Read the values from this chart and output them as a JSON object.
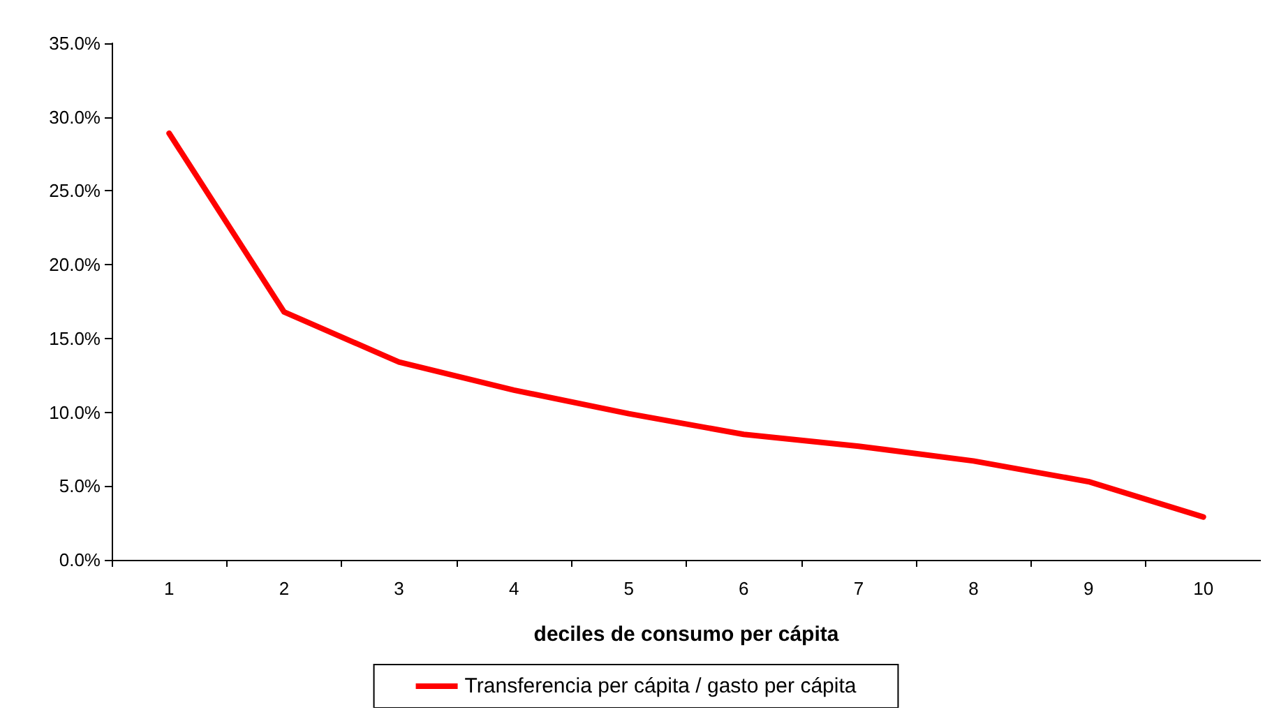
{
  "chart_data": {
    "type": "line",
    "xlabel": "deciles de consumo per cápita",
    "categories": [
      "1",
      "2",
      "3",
      "4",
      "5",
      "6",
      "7",
      "8",
      "9",
      "10"
    ],
    "series": [
      {
        "name": "Transferencia per cápita / gasto per cápita",
        "color": "#ff0000",
        "values": [
          28.9,
          16.8,
          13.4,
          11.5,
          9.9,
          8.5,
          7.7,
          6.7,
          5.3,
          2.9
        ]
      }
    ],
    "ylim": [
      0,
      35
    ],
    "yticks": [
      {
        "value": 0,
        "label": "0.0%"
      },
      {
        "value": 5,
        "label": "5.0%"
      },
      {
        "value": 10,
        "label": "10.0%"
      },
      {
        "value": 15,
        "label": "15.0%"
      },
      {
        "value": 20,
        "label": "20.0%"
      },
      {
        "value": 25,
        "label": "25.0%"
      },
      {
        "value": 30,
        "label": "30.0%"
      },
      {
        "value": 35,
        "label": "35.0%"
      }
    ],
    "grid": false,
    "legend": "bottom",
    "marker": "none",
    "line_style": "solid"
  }
}
